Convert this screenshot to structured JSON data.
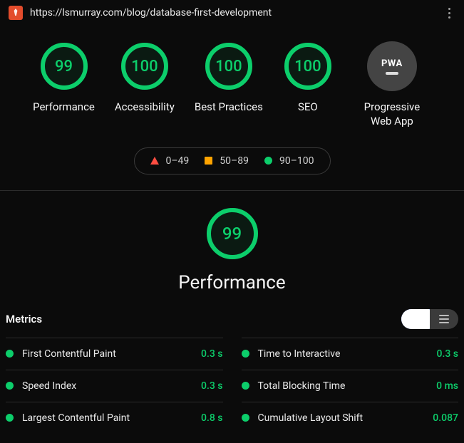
{
  "colors": {
    "good": "#0cce6b",
    "avg": "#ffa400",
    "bad": "#ff4e42",
    "gauge_fill": "rgba(12,206,107,0.08)",
    "gauge_track": "rgba(12,206,107,0.15)",
    "blue": "#2962ff",
    "grey": "#3b3b3b"
  },
  "header": {
    "url": "https://lsmurray.com/blog/database-first-development"
  },
  "gauges": [
    {
      "score": 99,
      "label": "Performance"
    },
    {
      "score": 100,
      "label": "Accessibility"
    },
    {
      "score": 100,
      "label": "Best Practices"
    },
    {
      "score": 100,
      "label": "SEO"
    }
  ],
  "pwa": {
    "label": "Progressive Web App",
    "badge_text": "PWA"
  },
  "legend": [
    {
      "shape": "triangle",
      "color": "#ff4e42",
      "label": "0–49"
    },
    {
      "shape": "square",
      "color": "#ffa400",
      "label": "50–89"
    },
    {
      "shape": "circle",
      "color": "#0cce6b",
      "label": "90–100"
    }
  ],
  "focus": {
    "score": 99,
    "title": "Performance"
  },
  "metrics_title": "Metrics",
  "metrics": [
    {
      "name": "First Contentful Paint",
      "value": "0.3 s",
      "status": "good"
    },
    {
      "name": "Time to Interactive",
      "value": "0.3 s",
      "status": "good"
    },
    {
      "name": "Speed Index",
      "value": "0.3 s",
      "status": "good"
    },
    {
      "name": "Total Blocking Time",
      "value": "0 ms",
      "status": "good"
    },
    {
      "name": "Largest Contentful Paint",
      "value": "0.8 s",
      "status": "good"
    },
    {
      "name": "Cumulative Layout Shift",
      "value": "0.087",
      "status": "good"
    }
  ]
}
